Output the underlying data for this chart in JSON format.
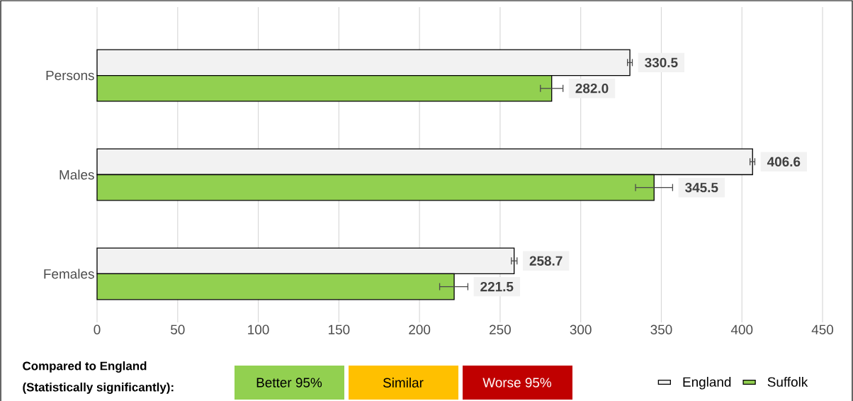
{
  "chart_data": {
    "type": "bar",
    "orientation": "horizontal",
    "categories": [
      "Persons",
      "Males",
      "Females"
    ],
    "series": [
      {
        "name": "England",
        "color": "#f2f2f2",
        "values": [
          330.5,
          406.6,
          258.7
        ],
        "errors": [
          [
            329,
            332
          ],
          [
            405,
            408
          ],
          [
            257,
            260.5
          ]
        ],
        "value_labels": [
          "330.5",
          "406.6",
          "258.7"
        ]
      },
      {
        "name": "Suffolk",
        "color": "#92d050",
        "values": [
          282.0,
          345.5,
          221.5
        ],
        "errors": [
          [
            275,
            289
          ],
          [
            334,
            357
          ],
          [
            212.5,
            230
          ]
        ],
        "value_labels": [
          "282.0",
          "345.5",
          "221.5"
        ]
      }
    ],
    "xlim": [
      0,
      450
    ],
    "xticks": [
      0,
      50,
      100,
      150,
      200,
      250,
      300,
      350,
      400,
      450
    ],
    "grid": "x",
    "legend": "bottom right",
    "annotations": [
      "Compared to England",
      "(Statistically significantly):",
      "Better 95%",
      "Similar",
      "Worse 95%"
    ]
  }
}
